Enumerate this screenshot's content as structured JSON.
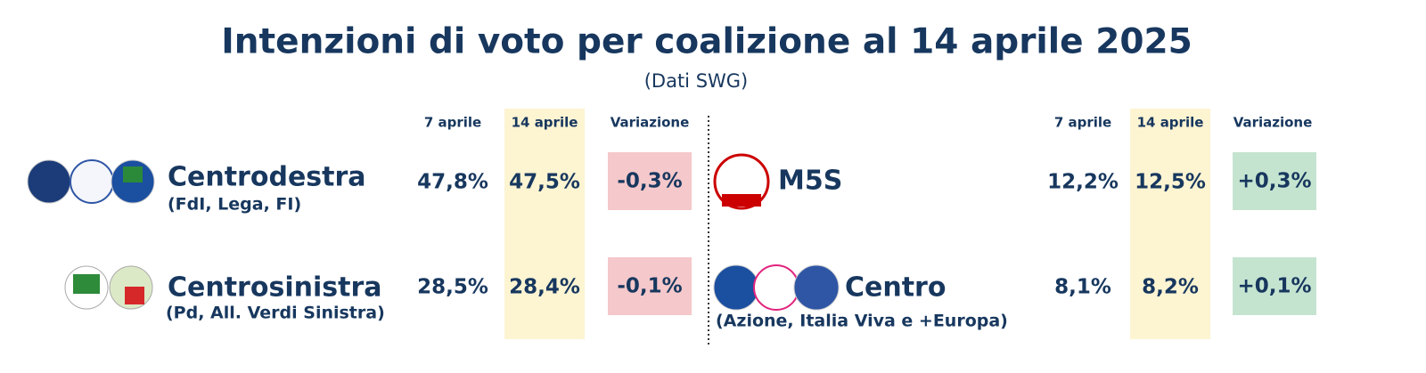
{
  "title": "Intenzioni di voto per coalizione al 14 aprile 2025",
  "subtitle": "(Dati SWG)",
  "panels": [
    {
      "headers": [
        "7 aprile",
        "14 aprile",
        "Variazione"
      ],
      "rows": [
        {
          "name": "Centrodestra",
          "detail": "(FdI, Lega, FI)",
          "prev": "47,8%",
          "curr": "47,5%",
          "change": "-0,3%"
        },
        {
          "name": "Centrosinistra",
          "detail": "(Pd, All. Verdi Sinistra)",
          "prev": "28,5%",
          "curr": "28,4%",
          "change": "-0,1%"
        }
      ]
    },
    {
      "headers": [
        "7 aprile",
        "14 aprile",
        "Variazione"
      ],
      "rows": [
        {
          "name": "M5S",
          "detail": null,
          "prev": "12,2%",
          "curr": "12,5%",
          "change": "+0,3%"
        },
        {
          "name": "Centro",
          "detail": "(Azione, Italia Viva e +Europa)",
          "prev": "8,1%",
          "curr": "8,2%",
          "change": "+0,1%"
        }
      ]
    }
  ]
}
